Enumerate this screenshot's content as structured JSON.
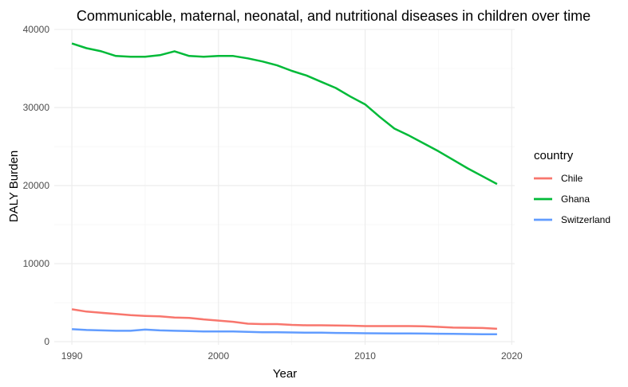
{
  "chart_data": {
    "type": "line",
    "title": "Communicable, maternal, neonatal, and nutritional diseases in children over time",
    "xlabel": "Year",
    "ylabel": "DALY Burden",
    "xlim": [
      1988.8,
      2020.2
    ],
    "ylim": [
      -400,
      40000
    ],
    "x_ticks": [
      1990,
      2000,
      2010,
      2020
    ],
    "y_ticks": [
      0,
      10000,
      20000,
      30000,
      40000
    ],
    "grid": true,
    "legend": {
      "title": "country",
      "position": "right"
    },
    "x": [
      1990,
      1991,
      1992,
      1993,
      1994,
      1995,
      1996,
      1997,
      1998,
      1999,
      2000,
      2001,
      2002,
      2003,
      2004,
      2005,
      2006,
      2007,
      2008,
      2009,
      2010,
      2011,
      2012,
      2013,
      2014,
      2015,
      2016,
      2017,
      2018,
      2019
    ],
    "series": [
      {
        "name": "Chile",
        "color": "#F8766D",
        "values": [
          4150,
          3850,
          3700,
          3550,
          3400,
          3300,
          3250,
          3100,
          3050,
          2850,
          2700,
          2550,
          2300,
          2250,
          2250,
          2150,
          2100,
          2100,
          2080,
          2050,
          2000,
          2000,
          2000,
          2000,
          1980,
          1900,
          1800,
          1780,
          1750,
          1650
        ]
      },
      {
        "name": "Ghana",
        "color": "#00BA38",
        "values": [
          38200,
          37600,
          37200,
          36600,
          36500,
          36500,
          36700,
          37200,
          36600,
          36500,
          36600,
          36600,
          36300,
          35900,
          35400,
          34700,
          34100,
          33300,
          32500,
          31400,
          30400,
          28800,
          27300,
          26400,
          25400,
          24400,
          23300,
          22200,
          21200,
          20200
        ]
      },
      {
        "name": "Switzerland",
        "color": "#619CFF",
        "values": [
          1600,
          1500,
          1450,
          1400,
          1400,
          1550,
          1450,
          1400,
          1350,
          1300,
          1300,
          1300,
          1250,
          1200,
          1200,
          1180,
          1150,
          1150,
          1120,
          1100,
          1080,
          1070,
          1060,
          1050,
          1040,
          1020,
          1000,
          980,
          960,
          950
        ]
      }
    ]
  }
}
